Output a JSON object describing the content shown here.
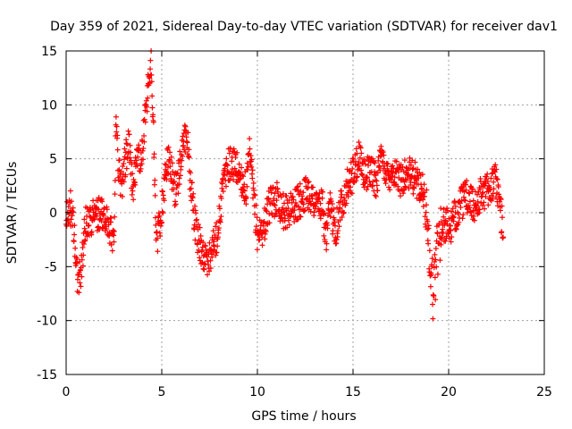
{
  "chart_data": {
    "type": "scatter",
    "title": "Day 359 of 2021, Sidereal Day-to-day VTEC variation (SDTVAR) for receiver dav1",
    "xlabel": "GPS time / hours",
    "ylabel": "SDTVAR / TECUs",
    "xlim": [
      0,
      25
    ],
    "ylim": [
      -15,
      15
    ],
    "xticks": [
      0,
      5,
      10,
      15,
      20,
      25
    ],
    "yticks": [
      -15,
      -10,
      -5,
      0,
      5,
      10,
      15
    ],
    "grid": true,
    "marker": "+",
    "color": "#ff0000",
    "series": [
      {
        "name": "SDTVAR",
        "trend": [
          [
            0.0,
            -1.0
          ],
          [
            0.2,
            0.8
          ],
          [
            0.4,
            -1.5
          ],
          [
            0.6,
            -6.5
          ],
          [
            0.8,
            -5.0
          ],
          [
            1.0,
            -1.0
          ],
          [
            1.3,
            -0.5
          ],
          [
            1.7,
            0.0
          ],
          [
            2.0,
            -0.5
          ],
          [
            2.3,
            -1.5
          ],
          [
            2.5,
            -2.5
          ],
          [
            2.6,
            8.5
          ],
          [
            2.7,
            5.0
          ],
          [
            2.9,
            2.5
          ],
          [
            3.1,
            5.0
          ],
          [
            3.3,
            6.5
          ],
          [
            3.5,
            1.5
          ],
          [
            3.7,
            6.0
          ],
          [
            3.9,
            4.0
          ],
          [
            4.1,
            8.0
          ],
          [
            4.3,
            12.5
          ],
          [
            4.45,
            13.5
          ],
          [
            4.6,
            6.0
          ],
          [
            4.7,
            -3.0
          ],
          [
            4.9,
            -1.0
          ],
          [
            5.1,
            2.0
          ],
          [
            5.3,
            5.0
          ],
          [
            5.5,
            4.0
          ],
          [
            5.7,
            2.0
          ],
          [
            5.9,
            3.5
          ],
          [
            6.1,
            6.5
          ],
          [
            6.3,
            7.5
          ],
          [
            6.5,
            3.0
          ],
          [
            6.7,
            -0.5
          ],
          [
            6.9,
            -2.5
          ],
          [
            7.1,
            -3.5
          ],
          [
            7.3,
            -4.5
          ],
          [
            7.5,
            -4.0
          ],
          [
            7.7,
            -3.0
          ],
          [
            7.9,
            -2.0
          ],
          [
            8.2,
            2.5
          ],
          [
            8.5,
            4.5
          ],
          [
            8.8,
            4.5
          ],
          [
            9.1,
            3.5
          ],
          [
            9.4,
            2.0
          ],
          [
            9.6,
            5.5
          ],
          [
            9.8,
            1.5
          ],
          [
            10.0,
            -2.0
          ],
          [
            10.3,
            -1.5
          ],
          [
            10.6,
            0.5
          ],
          [
            11.0,
            1.5
          ],
          [
            11.4,
            0.0
          ],
          [
            11.8,
            0.5
          ],
          [
            12.2,
            1.0
          ],
          [
            12.6,
            2.0
          ],
          [
            13.0,
            1.0
          ],
          [
            13.4,
            0.5
          ],
          [
            13.6,
            -2.5
          ],
          [
            13.8,
            0.5
          ],
          [
            14.1,
            -1.5
          ],
          [
            14.4,
            1.0
          ],
          [
            14.7,
            2.5
          ],
          [
            15.0,
            3.5
          ],
          [
            15.3,
            5.0
          ],
          [
            15.6,
            3.5
          ],
          [
            15.9,
            4.0
          ],
          [
            16.2,
            3.0
          ],
          [
            16.5,
            5.0
          ],
          [
            16.8,
            3.5
          ],
          [
            17.1,
            4.0
          ],
          [
            17.4,
            3.0
          ],
          [
            17.7,
            3.5
          ],
          [
            18.0,
            3.5
          ],
          [
            18.3,
            3.0
          ],
          [
            18.6,
            2.5
          ],
          [
            18.9,
            -1.0
          ],
          [
            19.05,
            -4.5
          ],
          [
            19.2,
            -8.0
          ],
          [
            19.35,
            -4.0
          ],
          [
            19.5,
            -2.0
          ],
          [
            19.8,
            -1.0
          ],
          [
            20.1,
            -1.5
          ],
          [
            20.4,
            0.0
          ],
          [
            20.7,
            1.0
          ],
          [
            21.0,
            1.5
          ],
          [
            21.3,
            0.5
          ],
          [
            21.6,
            1.5
          ],
          [
            21.9,
            2.0
          ],
          [
            22.2,
            2.5
          ],
          [
            22.5,
            3.0
          ],
          [
            22.7,
            0.0
          ],
          [
            22.85,
            -1.0
          ]
        ]
      }
    ]
  }
}
